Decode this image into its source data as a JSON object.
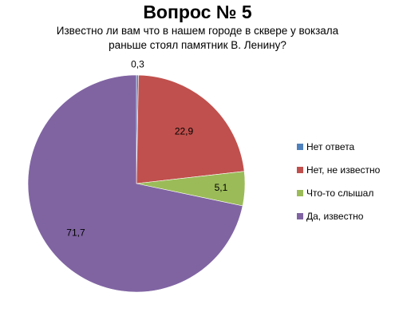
{
  "chart_data": {
    "type": "pie",
    "title": "Вопрос № 5",
    "subtitle_lines": [
      "Известно ли вам что в нашем городе в сквере у вокзала",
      "раньше стоял памятник В. Ленину?"
    ],
    "categories": [
      "Нет ответа",
      "Нет, не известно",
      "Что-то слышал",
      "Да, известно"
    ],
    "values": [
      0.3,
      22.9,
      5.1,
      71.7
    ],
    "data_labels": [
      "0,3",
      "22,9",
      "5,1",
      "71,7"
    ],
    "colors": [
      "#4F81BD",
      "#C0504D",
      "#9BBB59",
      "#8064A2"
    ],
    "legend_position": "right"
  }
}
